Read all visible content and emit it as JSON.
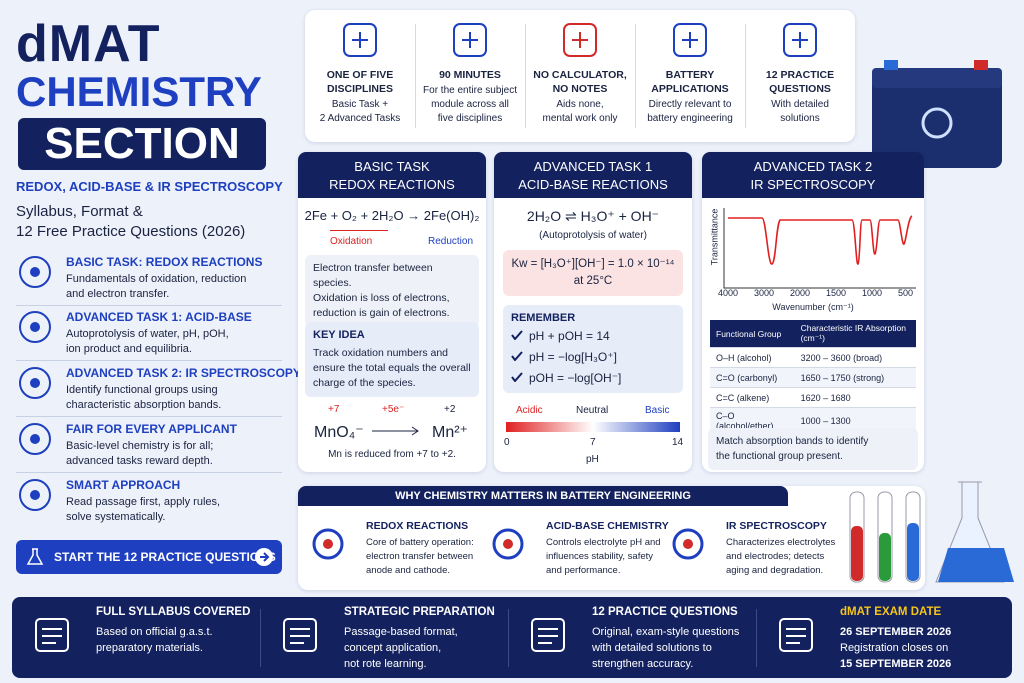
{
  "header": {
    "brand": "dMAT",
    "subject": "CHEMISTRY",
    "section": "SECTION",
    "topics": "REDOX, ACID-BASE & IR SPECTROSCOPY",
    "tagline": [
      "Syllabus, Format &",
      "12 Free Practice Questions (2026)"
    ]
  },
  "topics": [
    {
      "title": "BASIC TASK: REDOX REACTIONS",
      "text": [
        "Fundamentals of oxidation, reduction",
        "and electron transfer."
      ]
    },
    {
      "title": "ADVANCED TASK 1: ACID-BASE",
      "text": [
        "Autoprotolysis of water, pH, pOH,",
        "ion product and equilibria."
      ]
    },
    {
      "title": "ADVANCED TASK 2: IR SPECTROSCOPY",
      "text": [
        "Identify functional groups using",
        "characteristic absorption bands."
      ]
    },
    {
      "title": "FAIR FOR EVERY APPLICANT",
      "text": [
        "Basic-level chemistry is for all;",
        "advanced tasks reward depth."
      ]
    },
    {
      "title": "SMART APPROACH",
      "text": [
        "Read passage first, apply rules,",
        "solve systematically."
      ]
    }
  ],
  "cta": "START THE 12 PRACTICE QUESTIONS",
  "facts": [
    {
      "title": [
        "ONE OF FIVE",
        "DISCIPLINES"
      ],
      "text": [
        "Basic Task +",
        "2 Advanced Tasks"
      ]
    },
    {
      "title": [
        "90 MINUTES"
      ],
      "text": [
        "For the entire subject",
        "module across all",
        "five disciplines"
      ]
    },
    {
      "title": [
        "NO CALCULATOR,",
        "NO NOTES"
      ],
      "text": [
        "Aids none,",
        "mental work only"
      ]
    },
    {
      "title": [
        "BATTERY",
        "APPLICATIONS"
      ],
      "text": [
        "Directly relevant to",
        "battery engineering"
      ]
    },
    {
      "title": [
        "12 PRACTICE",
        "QUESTIONS"
      ],
      "text": [
        "With detailed",
        "solutions"
      ]
    }
  ],
  "basic": {
    "header": [
      "BASIC TASK",
      "REDOX REACTIONS"
    ],
    "equation": "2Fe + O₂ + 2H₂O → 2Fe(OH)₂",
    "oxidation": "Oxidation",
    "reduction": "Reduction",
    "note": [
      "Electron transfer between species.",
      "Oxidation is loss of electrons,",
      "reduction is gain of electrons."
    ],
    "key_title": "KEY IDEA",
    "key_text": [
      "Track oxidation numbers and",
      "ensure the total equals the overall",
      "charge of the species."
    ],
    "ox_before": "+7",
    "electrons": "+5e⁻",
    "ox_after": "+2",
    "species_before": "MnO₄⁻",
    "species_after": "Mn²⁺",
    "footnote": "Mn is reduced from +7 to +2."
  },
  "adv1": {
    "header": [
      "ADVANCED TASK 1",
      "ACID-BASE REACTIONS"
    ],
    "equation": "2H₂O ⇌ H₃O⁺ + OH⁻",
    "caption": "(Autoprotolysis of water)",
    "kw": [
      "Kw = [H₃O⁺][OH⁻] = 1.0 × 10⁻¹⁴",
      "at 25°C"
    ],
    "remember_title": "REMEMBER",
    "remember": [
      "pH + pOH = 14",
      "pH = −log[H₃O⁺]",
      "pOH = −log[OH⁻]"
    ],
    "scale_labels": [
      "Acidic",
      "Neutral",
      "Basic"
    ],
    "scale_ticks": [
      "0",
      "7",
      "14"
    ],
    "scale_axis": "pH"
  },
  "adv2": {
    "header": [
      "ADVANCED TASK 2",
      "IR SPECTROSCOPY"
    ],
    "y_axis": "Transmittance",
    "x_ticks": [
      "4000",
      "3000",
      "2000",
      "1500",
      "1000",
      "500"
    ],
    "x_axis": "Wavenumber (cm⁻¹)",
    "table": {
      "columns": [
        "Functional Group",
        "Characteristic IR Absorption (cm⁻¹)"
      ],
      "rows": [
        [
          "O–H (alcohol)",
          "3200 – 3600 (broad)"
        ],
        [
          "C=O (carbonyl)",
          "1650 – 1750 (strong)"
        ],
        [
          "C=C (alkene)",
          "1620 – 1680"
        ],
        [
          "C–O (alcohol/ether)",
          "1000 – 1300"
        ]
      ]
    },
    "note": [
      "Match absorption bands to identify",
      "the functional group present."
    ]
  },
  "battery": {
    "title": "WHY CHEMISTRY MATTERS IN BATTERY ENGINEERING",
    "items": [
      {
        "title": "REDOX REACTIONS",
        "text": [
          "Core of battery operation:",
          "electron transfer between",
          "anode and cathode."
        ]
      },
      {
        "title": "ACID-BASE CHEMISTRY",
        "text": [
          "Controls electrolyte pH and",
          "influences stability, safety",
          "and performance."
        ]
      },
      {
        "title": "IR SPECTROSCOPY",
        "text": [
          "Characterizes electrolytes",
          "and electrodes; detects",
          "aging and degradation."
        ]
      }
    ]
  },
  "footer": [
    {
      "title": "FULL SYLLABUS COVERED",
      "text": [
        "Based on official g.a.s.t.",
        "preparatory materials."
      ]
    },
    {
      "title": "STRATEGIC PREPARATION",
      "text": [
        "Passage-based format,",
        "concept application,",
        "not rote learning."
      ]
    },
    {
      "title": "12 PRACTICE QUESTIONS",
      "text": [
        "Original, exam-style questions",
        "with detailed solutions to",
        "strengthen accuracy."
      ]
    },
    {
      "title": "dMAT EXAM DATE",
      "text": [
        "26 SEPTEMBER 2026",
        "Registration closes on",
        "15 SEPTEMBER 2026"
      ]
    }
  ]
}
